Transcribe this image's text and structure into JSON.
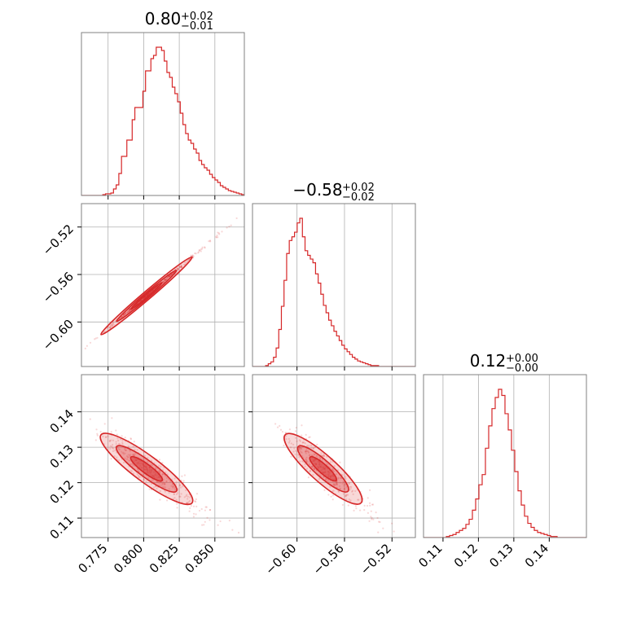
{
  "colors": {
    "accent": "#d62728",
    "grid": "#b0b0b0",
    "frame": "#808080",
    "background": "#ffffff"
  },
  "chart_data": {
    "type": "corner",
    "grid": true,
    "titles": [
      {
        "main": "0.80",
        "sup": "+0.02",
        "sub": "−0.01"
      },
      {
        "main": "−0.58",
        "sup": "+0.02",
        "sub": "−0.02"
      },
      {
        "main": "0.12",
        "sup": "+0.00",
        "sub": "−0.00"
      }
    ],
    "params": [
      {
        "range": [
          0.7563,
          0.8707
        ],
        "ticks": [
          0.775,
          0.8,
          0.825,
          0.85
        ],
        "tick_labels": [
          "0.775",
          "0.800",
          "0.825",
          "0.850"
        ]
      },
      {
        "range": [
          -0.6375,
          -0.5003
        ],
        "ticks": [
          -0.6,
          -0.56,
          -0.52
        ],
        "tick_labels": [
          "−0.60",
          "−0.56",
          "−0.52"
        ]
      },
      {
        "range": [
          0.1045,
          0.1505
        ],
        "ticks": [
          0.11,
          0.12,
          0.13,
          0.14
        ],
        "tick_labels": [
          "0.11",
          "0.12",
          "0.13",
          "0.14"
        ]
      }
    ],
    "histograms": [
      {
        "param": 0,
        "edges_range": [
          0.7563,
          0.8707
        ],
        "counts": [
          0,
          0,
          0,
          0,
          0,
          0,
          0,
          0,
          1,
          2,
          2,
          3,
          8,
          13,
          27,
          48,
          48,
          68,
          68,
          93,
          108,
          108,
          108,
          128,
          153,
          153,
          168,
          172,
          182,
          182,
          178,
          165,
          151,
          145,
          133,
          125,
          115,
          101,
          87,
          76,
          68,
          64,
          57,
          52,
          43,
          38,
          34,
          31,
          26,
          22,
          19,
          16,
          12,
          10,
          8,
          6,
          5,
          4,
          3,
          2,
          1
        ]
      },
      {
        "param": 1,
        "edges_range": [
          -0.6375,
          -0.5003
        ],
        "counts": [
          0,
          0,
          0,
          0,
          0,
          1,
          3,
          5,
          10,
          20,
          40,
          65,
          93,
          122,
          136,
          140,
          145,
          155,
          160,
          140,
          125,
          120,
          116,
          112,
          100,
          90,
          78,
          66,
          58,
          50,
          44,
          38,
          33,
          28,
          23,
          19,
          16,
          13,
          10,
          8,
          6,
          5,
          4,
          3,
          2,
          1,
          1,
          1,
          0,
          0,
          0,
          0,
          0,
          0,
          0,
          0,
          0,
          0,
          0,
          0,
          0,
          0
        ]
      },
      {
        "param": 2,
        "edges_range": [
          0.1045,
          0.1505
        ],
        "counts": [
          0,
          0,
          0,
          0,
          0,
          0,
          0,
          1,
          2,
          3,
          5,
          7,
          9,
          13,
          18,
          27,
          38,
          52,
          62,
          88,
          110,
          127,
          138,
          146,
          140,
          122,
          106,
          86,
          65,
          46,
          32,
          21,
          14,
          10,
          7,
          5,
          4,
          3,
          2,
          1,
          1,
          0,
          0,
          0,
          0,
          0,
          0,
          0,
          0,
          0
        ]
      }
    ],
    "scatter_panels": [
      {
        "x_param": 0,
        "y_param": 1,
        "relation": "y ≈ -0.58 + 1.02·(x − 0.80)",
        "contour_levels": 3
      },
      {
        "x_param": 0,
        "y_param": 2,
        "relation": "y ≈ 0.1245 − 0.30·(x − 0.80)",
        "contour_levels": 3
      },
      {
        "x_param": 1,
        "y_param": 2,
        "relation": "y ≈ 0.1245 − 0.30·(x + 0.58)",
        "contour_levels": 3
      }
    ]
  }
}
